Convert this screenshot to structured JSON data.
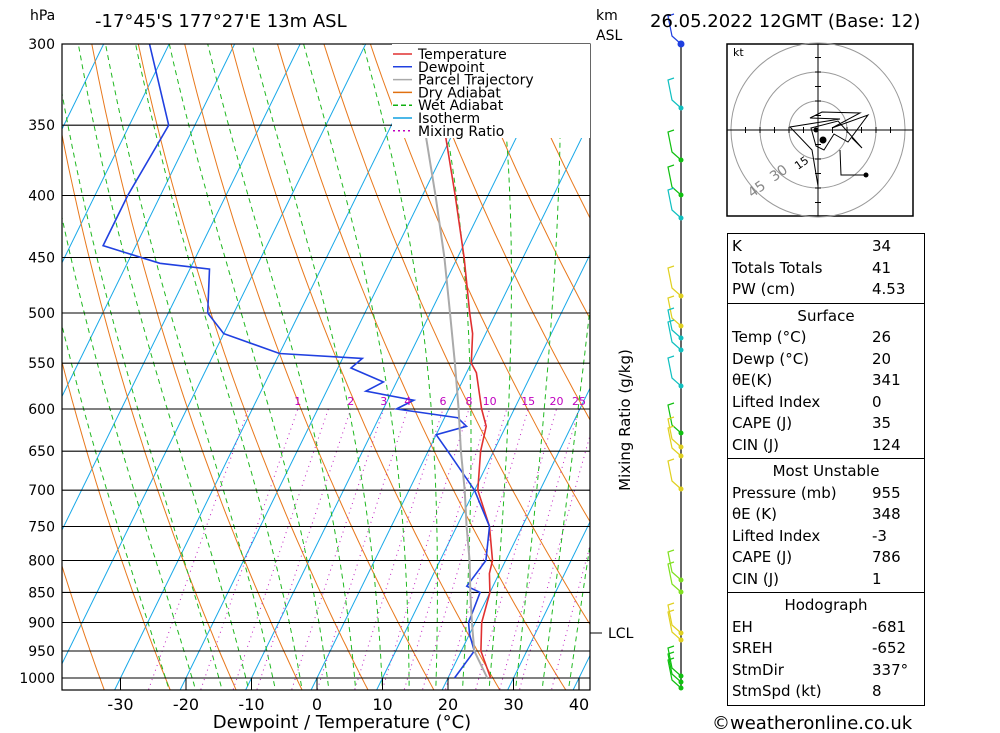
{
  "header": {
    "location": "-17°45'S  177°27'E  13m  ASL",
    "datetime": "26.05.2022  12GMT  (Base: 12)",
    "pressure_unit": "hPa",
    "height_unit_1": "km",
    "height_unit_2": "ASL"
  },
  "axes": {
    "xlabel": "Dewpoint / Temperature (°C)",
    "mixing_label": "Mixing Ratio (g/kg)",
    "lcl_label": "LCL",
    "hodo_unit": "kt",
    "hodo_rings": [
      "15",
      "30",
      "45"
    ]
  },
  "legend": [
    {
      "label": "Temperature",
      "color": "#e03030"
    },
    {
      "label": "Dewpoint",
      "color": "#2040e0"
    },
    {
      "label": "Parcel Trajectory",
      "color": "#aaaaaa"
    },
    {
      "label": "Dry Adiabat",
      "color": "#e07010"
    },
    {
      "label": "Wet Adiabat",
      "color": "#10b010"
    },
    {
      "label": "Isotherm",
      "color": "#10a0e0"
    },
    {
      "label": "Mixing Ratio",
      "color": "#c000c0"
    }
  ],
  "indices": [
    {
      "name": "K",
      "value": "34"
    },
    {
      "name": "Totals Totals",
      "value": "41"
    },
    {
      "name": "PW (cm)",
      "value": "4.53"
    }
  ],
  "surface": {
    "title": "Surface",
    "rows": [
      {
        "name": "Temp (°C)",
        "value": "26"
      },
      {
        "name": "Dewp (°C)",
        "value": "20"
      },
      {
        "name": "θE(K)",
        "value": "341"
      },
      {
        "name": "Lifted Index",
        "value": "0"
      },
      {
        "name": "CAPE (J)",
        "value": "35"
      },
      {
        "name": "CIN (J)",
        "value": "124"
      }
    ]
  },
  "most_unstable": {
    "title": "Most Unstable",
    "rows": [
      {
        "name": "Pressure (mb)",
        "value": "955"
      },
      {
        "name": "θE (K)",
        "value": "348"
      },
      {
        "name": "Lifted Index",
        "value": "-3"
      },
      {
        "name": "CAPE (J)",
        "value": "786"
      },
      {
        "name": "CIN (J)",
        "value": "1"
      }
    ]
  },
  "hodograph": {
    "title": "Hodograph",
    "rows": [
      {
        "name": "EH",
        "value": "-681"
      },
      {
        "name": "SREH",
        "value": "-652"
      },
      {
        "name": "StmDir",
        "value": "337°"
      },
      {
        "name": "StmSpd (kt)",
        "value": "8"
      }
    ]
  },
  "footer": {
    "credit": "©weatheronline.co.uk"
  },
  "chart_data": {
    "type": "line",
    "title": "-17°45'S  177°27'E  13m  ASL",
    "xlabel": "Dewpoint / Temperature (°C)",
    "ylabel": "hPa",
    "xlim": [
      -40,
      40
    ],
    "ylim": [
      1000,
      300
    ],
    "y_scale": "log",
    "x_ticks": [
      -30,
      -20,
      -10,
      0,
      10,
      20,
      30,
      40
    ],
    "y_ticks": [
      300,
      350,
      400,
      450,
      500,
      550,
      600,
      650,
      700,
      750,
      800,
      850,
      900,
      950,
      1000
    ],
    "mixing_ratio_labels": [
      1,
      2,
      3,
      4,
      6,
      8,
      10,
      15,
      20,
      25
    ],
    "legend_position": "top-right",
    "series": [
      {
        "name": "Temperature",
        "color": "#e03030",
        "points": [
          [
            1000,
            26.5
          ],
          [
            950,
            23
          ],
          [
            900,
            21
          ],
          [
            850,
            20
          ],
          [
            820,
            18.5
          ],
          [
            800,
            18
          ],
          [
            750,
            15
          ],
          [
            700,
            10.5
          ],
          [
            650,
            8
          ],
          [
            620,
            7
          ],
          [
            600,
            5
          ],
          [
            560,
            1.5
          ],
          [
            550,
            0
          ],
          [
            520,
            -2
          ],
          [
            500,
            -4
          ],
          [
            450,
            -9
          ],
          [
            400,
            -15
          ],
          [
            350,
            -22
          ],
          [
            300,
            -30
          ]
        ]
      },
      {
        "name": "Dewpoint",
        "color": "#2040e0",
        "points": [
          [
            1000,
            21
          ],
          [
            950,
            22
          ],
          [
            920,
            20
          ],
          [
            900,
            19
          ],
          [
            850,
            18.5
          ],
          [
            840,
            16
          ],
          [
            800,
            17
          ],
          [
            750,
            15
          ],
          [
            700,
            10
          ],
          [
            650,
            3
          ],
          [
            630,
            0
          ],
          [
            620,
            4
          ],
          [
            610,
            2
          ],
          [
            600,
            -8
          ],
          [
            590,
            -6
          ],
          [
            580,
            -14
          ],
          [
            570,
            -12
          ],
          [
            555,
            -18
          ],
          [
            545,
            -17
          ],
          [
            540,
            -30
          ],
          [
            520,
            -40
          ],
          [
            500,
            -44
          ],
          [
            460,
            -47
          ],
          [
            455,
            -55
          ],
          [
            440,
            -65
          ],
          [
            400,
            -65
          ],
          [
            350,
            -64
          ],
          [
            300,
            -73
          ]
        ]
      },
      {
        "name": "Parcel Trajectory",
        "color": "#aaaaaa",
        "points": [
          [
            1000,
            26
          ],
          [
            950,
            22
          ],
          [
            900,
            19.5
          ],
          [
            850,
            17
          ],
          [
            800,
            14.5
          ],
          [
            750,
            11.5
          ],
          [
            700,
            8.5
          ],
          [
            650,
            5
          ],
          [
            600,
            1.5
          ],
          [
            550,
            -2.5
          ],
          [
            500,
            -7
          ],
          [
            450,
            -12
          ],
          [
            400,
            -18
          ],
          [
            350,
            -25
          ],
          [
            300,
            -34
          ]
        ]
      }
    ]
  }
}
